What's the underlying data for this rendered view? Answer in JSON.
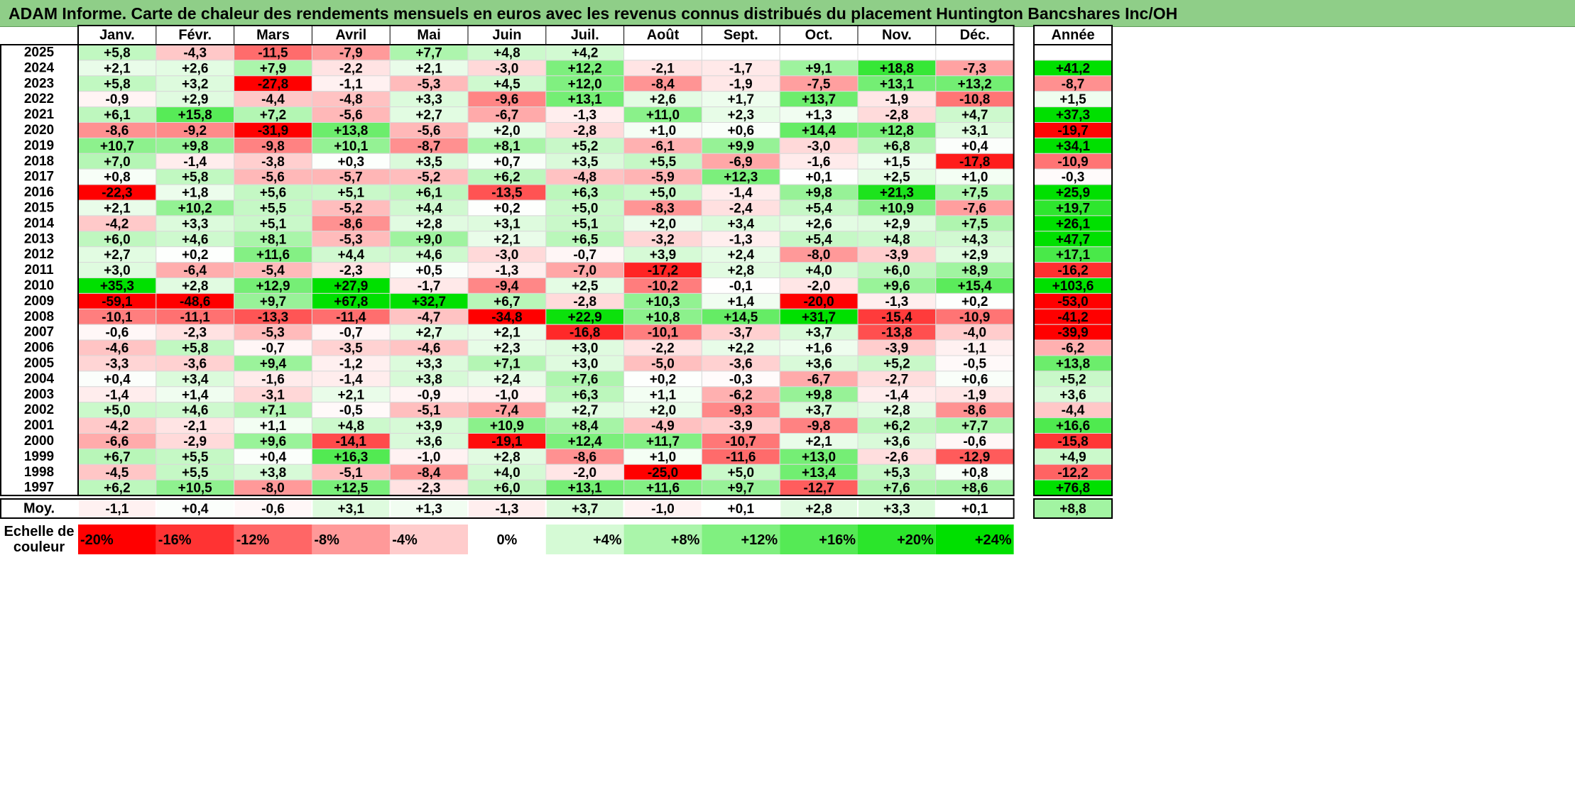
{
  "title": "ADAM Informe. Carte de chaleur des rendements mensuels en euros avec les revenus connus distribués du placement Huntington Bancshares Inc/OH",
  "chart_data": {
    "type": "heatmap",
    "months": [
      "Janv.",
      "Févr.",
      "Mars",
      "Avril",
      "Mai",
      "Juin",
      "Juil.",
      "Août",
      "Sept.",
      "Oct.",
      "Nov.",
      "Déc."
    ],
    "year_header": "Année",
    "rows": [
      {
        "year": "2025",
        "values": [
          "+5,8",
          "-4,3",
          "-11,5",
          "-7,9",
          "+7,7",
          "+4,8",
          "+4,2",
          "",
          "",
          "",
          "",
          ""
        ],
        "annual": ""
      },
      {
        "year": "2024",
        "values": [
          "+2,1",
          "+2,6",
          "+7,9",
          "-2,2",
          "+2,1",
          "-3,0",
          "+12,2",
          "-2,1",
          "-1,7",
          "+9,1",
          "+18,8",
          "-7,3"
        ],
        "annual": "+41,2"
      },
      {
        "year": "2023",
        "values": [
          "+5,8",
          "+3,2",
          "-27,8",
          "-1,1",
          "-5,3",
          "+4,5",
          "+12,0",
          "-8,4",
          "-1,9",
          "-7,5",
          "+13,1",
          "+13,2"
        ],
        "annual": "-8,7"
      },
      {
        "year": "2022",
        "values": [
          "-0,9",
          "+2,9",
          "-4,4",
          "-4,8",
          "+3,3",
          "-9,6",
          "+13,1",
          "+2,6",
          "+1,7",
          "+13,7",
          "-1,9",
          "-10,8"
        ],
        "annual": "+1,5"
      },
      {
        "year": "2021",
        "values": [
          "+6,1",
          "+15,8",
          "+7,2",
          "-5,6",
          "+2,7",
          "-6,7",
          "-1,3",
          "+11,0",
          "+2,3",
          "+1,3",
          "-2,8",
          "+4,7"
        ],
        "annual": "+37,3"
      },
      {
        "year": "2020",
        "values": [
          "-8,6",
          "-9,2",
          "-31,9",
          "+13,8",
          "-5,6",
          "+2,0",
          "-2,8",
          "+1,0",
          "+0,6",
          "+14,4",
          "+12,8",
          "+3,1"
        ],
        "annual": "-19,7"
      },
      {
        "year": "2019",
        "values": [
          "+10,7",
          "+9,8",
          "-9,8",
          "+10,1",
          "-8,7",
          "+8,1",
          "+5,2",
          "-6,1",
          "+9,9",
          "-3,0",
          "+6,8",
          "+0,4"
        ],
        "annual": "+34,1"
      },
      {
        "year": "2018",
        "values": [
          "+7,0",
          "-1,4",
          "-3,8",
          "+0,3",
          "+3,5",
          "+0,7",
          "+3,5",
          "+5,5",
          "-6,9",
          "-1,6",
          "+1,5",
          "-17,8"
        ],
        "annual": "-10,9"
      },
      {
        "year": "2017",
        "values": [
          "+0,8",
          "+5,8",
          "-5,6",
          "-5,7",
          "-5,2",
          "+6,2",
          "-4,8",
          "-5,9",
          "+12,3",
          "+0,1",
          "+2,5",
          "+1,0"
        ],
        "annual": "-0,3"
      },
      {
        "year": "2016",
        "values": [
          "-22,3",
          "+1,8",
          "+5,6",
          "+5,1",
          "+6,1",
          "-13,5",
          "+6,3",
          "+5,0",
          "-1,4",
          "+9,8",
          "+21,3",
          "+7,5"
        ],
        "annual": "+25,9"
      },
      {
        "year": "2015",
        "values": [
          "+2,1",
          "+10,2",
          "+5,5",
          "-5,2",
          "+4,4",
          "+0,2",
          "+5,0",
          "-8,3",
          "-2,4",
          "+5,4",
          "+10,9",
          "-7,6"
        ],
        "annual": "+19,7"
      },
      {
        "year": "2014",
        "values": [
          "-4,2",
          "+3,3",
          "+5,1",
          "-8,6",
          "+2,8",
          "+3,1",
          "+5,1",
          "+2,0",
          "+3,4",
          "+2,6",
          "+2,9",
          "+7,5"
        ],
        "annual": "+26,1"
      },
      {
        "year": "2013",
        "values": [
          "+6,0",
          "+4,6",
          "+8,1",
          "-5,3",
          "+9,0",
          "+2,1",
          "+6,5",
          "-3,2",
          "-1,3",
          "+5,4",
          "+4,8",
          "+4,3"
        ],
        "annual": "+47,7"
      },
      {
        "year": "2012",
        "values": [
          "+2,7",
          "+0,2",
          "+11,6",
          "+4,4",
          "+4,6",
          "-3,0",
          "-0,7",
          "+3,9",
          "+2,4",
          "-8,0",
          "-3,9",
          "+2,9"
        ],
        "annual": "+17,1"
      },
      {
        "year": "2011",
        "values": [
          "+3,0",
          "-6,4",
          "-5,4",
          "-2,3",
          "+0,5",
          "-1,3",
          "-7,0",
          "-17,2",
          "+2,8",
          "+4,0",
          "+6,0",
          "+8,9"
        ],
        "annual": "-16,2"
      },
      {
        "year": "2010",
        "values": [
          "+35,3",
          "+2,8",
          "+12,9",
          "+27,9",
          "-1,7",
          "-9,4",
          "+2,5",
          "-10,2",
          "-0,1",
          "-2,0",
          "+9,6",
          "+15,4"
        ],
        "annual": "+103,6"
      },
      {
        "year": "2009",
        "values": [
          "-59,1",
          "-48,6",
          "+9,7",
          "+67,8",
          "+32,7",
          "+6,7",
          "-2,8",
          "+10,3",
          "+1,4",
          "-20,0",
          "-1,3",
          "+0,2"
        ],
        "annual": "-53,0"
      },
      {
        "year": "2008",
        "values": [
          "-10,1",
          "-11,1",
          "-13,3",
          "-11,4",
          "-4,7",
          "-34,8",
          "+22,9",
          "+10,8",
          "+14,5",
          "+31,7",
          "-15,4",
          "-10,9"
        ],
        "annual": "-41,2"
      },
      {
        "year": "2007",
        "values": [
          "-0,6",
          "-2,3",
          "-5,3",
          "-0,7",
          "+2,7",
          "+2,1",
          "-16,8",
          "-10,1",
          "-3,7",
          "+3,7",
          "-13,8",
          "-4,0"
        ],
        "annual": "-39,9"
      },
      {
        "year": "2006",
        "values": [
          "-4,6",
          "+5,8",
          "-0,7",
          "-3,5",
          "-4,6",
          "+2,3",
          "+3,0",
          "-2,2",
          "+2,2",
          "+1,6",
          "-3,9",
          "-1,1"
        ],
        "annual": "-6,2"
      },
      {
        "year": "2005",
        "values": [
          "-3,3",
          "-3,6",
          "+9,4",
          "-1,2",
          "+3,3",
          "+7,1",
          "+3,0",
          "-5,0",
          "-3,6",
          "+3,6",
          "+5,2",
          "-0,5"
        ],
        "annual": "+13,8"
      },
      {
        "year": "2004",
        "values": [
          "+0,4",
          "+3,4",
          "-1,6",
          "-1,4",
          "+3,8",
          "+2,4",
          "+7,6",
          "+0,2",
          "-0,3",
          "-6,7",
          "-2,7",
          "+0,6"
        ],
        "annual": "+5,2"
      },
      {
        "year": "2003",
        "values": [
          "-1,4",
          "+1,4",
          "-3,1",
          "+2,1",
          "-0,9",
          "-1,0",
          "+6,3",
          "+1,1",
          "-6,2",
          "+9,8",
          "-1,4",
          "-1,9"
        ],
        "annual": "+3,6"
      },
      {
        "year": "2002",
        "values": [
          "+5,0",
          "+4,6",
          "+7,1",
          "-0,5",
          "-5,1",
          "-7,4",
          "+2,7",
          "+2,0",
          "-9,3",
          "+3,7",
          "+2,8",
          "-8,6"
        ],
        "annual": "-4,4"
      },
      {
        "year": "2001",
        "values": [
          "-4,2",
          "-2,1",
          "+1,1",
          "+4,8",
          "+3,9",
          "+10,9",
          "+8,4",
          "-4,9",
          "-3,9",
          "-9,8",
          "+6,2",
          "+7,7"
        ],
        "annual": "+16,6"
      },
      {
        "year": "2000",
        "values": [
          "-6,6",
          "-2,9",
          "+9,6",
          "-14,1",
          "+3,6",
          "-19,1",
          "+12,4",
          "+11,7",
          "-10,7",
          "+2,1",
          "+3,6",
          "-0,6"
        ],
        "annual": "-15,8"
      },
      {
        "year": "1999",
        "values": [
          "+6,7",
          "+5,5",
          "+0,4",
          "+16,3",
          "-1,0",
          "+2,8",
          "-8,6",
          "+1,0",
          "-11,6",
          "+13,0",
          "-2,6",
          "-12,9"
        ],
        "annual": "+4,9"
      },
      {
        "year": "1998",
        "values": [
          "-4,5",
          "+5,5",
          "+3,8",
          "-5,1",
          "-8,4",
          "+4,0",
          "-2,0",
          "-25,0",
          "+5,0",
          "+13,4",
          "+5,3",
          "+0,8"
        ],
        "annual": "-12,2"
      },
      {
        "year": "1997",
        "values": [
          "+6,2",
          "+10,5",
          "-8,0",
          "+12,5",
          "-2,3",
          "+6,0",
          "+13,1",
          "+11,6",
          "+9,7",
          "-12,7",
          "+7,6",
          "+8,6"
        ],
        "annual": "+76,8"
      }
    ],
    "average": {
      "label": "Moy.",
      "values": [
        "-1,1",
        "+0,4",
        "-0,6",
        "+3,1",
        "+1,3",
        "-1,3",
        "+3,7",
        "-1,0",
        "+0,1",
        "+2,8",
        "+3,3",
        "+0,1"
      ],
      "annual": "+8,8"
    },
    "color_scale": {
      "label_line1": "Echelle de",
      "label_line2": "couleur",
      "stops": [
        "-20%",
        "-16%",
        "-12%",
        "-8%",
        "-4%",
        "0%",
        "+4%",
        "+8%",
        "+12%",
        "+16%",
        "+20%",
        "+24%"
      ],
      "stop_values": [
        -20,
        -16,
        -12,
        -8,
        -4,
        0,
        4,
        8,
        12,
        16,
        20,
        24
      ],
      "negative_color": "#ff0000",
      "neutral_color": "#ffffff",
      "positive_color": "#00e000"
    }
  }
}
